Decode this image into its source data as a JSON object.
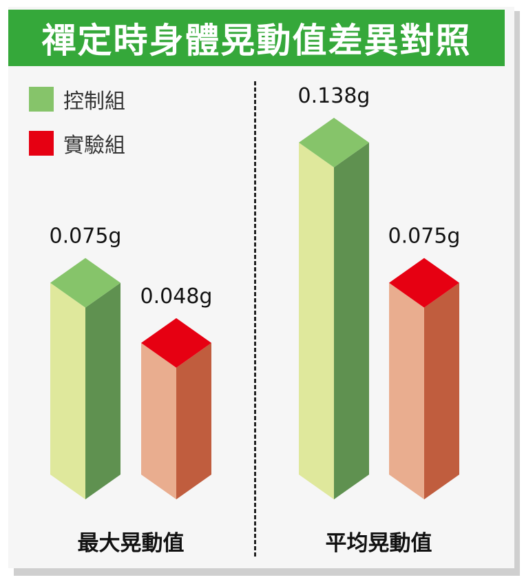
{
  "title": "禪定時身體晃動值差異對照",
  "legend": [
    {
      "label": "控制組",
      "color": "#86c46a"
    },
    {
      "label": "實驗組",
      "color": "#e60012"
    }
  ],
  "chart_data": {
    "type": "bar",
    "categories": [
      "最大晃動值",
      "平均晃動值"
    ],
    "series": [
      {
        "name": "控制組",
        "values": [
          0.075,
          0.138
        ],
        "labels": [
          "0.075g",
          "0.138g"
        ]
      },
      {
        "name": "實驗組",
        "values": [
          0.048,
          0.075
        ],
        "labels": [
          "0.048g",
          "0.075g"
        ]
      }
    ],
    "unit": "g",
    "ylim": [
      0,
      0.138
    ],
    "colors": {
      "control_top": "#86c46a",
      "control_front": "#dfe89c",
      "control_side": "#5f9150",
      "exp_top": "#e60012",
      "exp_front": "#e9ad8f",
      "exp_side": "#c05d3e"
    }
  }
}
